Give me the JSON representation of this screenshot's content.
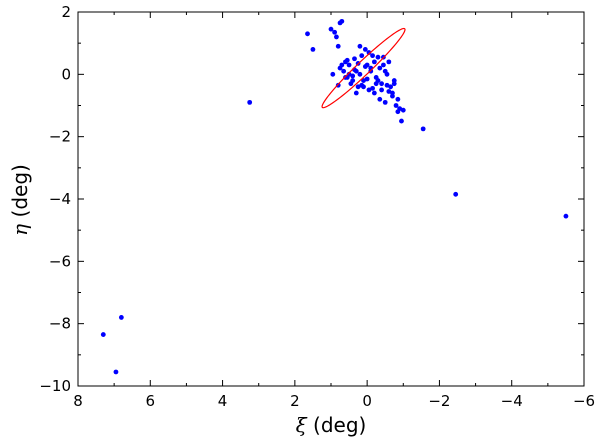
{
  "chart_data": {
    "type": "scatter",
    "xlabel_symbol": "ξ",
    "xlabel_unit": " (deg)",
    "ylabel_symbol": "η",
    "ylabel_unit": " (deg)",
    "xlim": [
      8,
      -6
    ],
    "ylim": [
      -10,
      2
    ],
    "xticks": [
      8,
      6,
      4,
      2,
      0,
      -2,
      -4,
      -6
    ],
    "yticks": [
      2,
      0,
      -2,
      -4,
      -6,
      -8,
      -10
    ],
    "xtick_labels": [
      "8",
      "6",
      "4",
      "2",
      "0",
      "−2",
      "−4",
      "−6"
    ],
    "ytick_labels": [
      "2",
      "0",
      "−2",
      "−4",
      "−6",
      "−8",
      "−10"
    ],
    "grid": false,
    "colors": {
      "points": "#0000ff",
      "ellipse": "#ff0000",
      "axes": "#000000"
    },
    "ellipse": {
      "center": [
        0.1,
        0.2
      ],
      "semi_major": 1.7,
      "semi_minor": 0.2,
      "angle_deg": 132
    },
    "points": {
      "x": [
        0.75,
        0.7,
        1.65,
        1.5,
        1.0,
        0.9,
        0.85,
        0.8,
        0.75,
        0.7,
        0.65,
        0.6,
        0.55,
        0.5,
        0.45,
        0.4,
        0.35,
        0.3,
        0.25,
        0.2,
        0.15,
        0.1,
        0.05,
        0.0,
        -0.05,
        -0.1,
        -0.15,
        -0.2,
        -0.25,
        -0.3,
        -0.35,
        -0.4,
        -0.45,
        -0.5,
        -0.55,
        -0.6,
        -0.65,
        -0.7,
        -0.75,
        -0.8,
        -0.85,
        -0.9,
        -0.95,
        0.95,
        0.8,
        0.6,
        0.5,
        0.3,
        0.2,
        0.1,
        -0.1,
        -0.2,
        -0.3,
        -0.45,
        -0.55,
        -0.7,
        -0.85,
        -1.0,
        -0.05,
        0.05,
        -0.25,
        -0.35,
        0.4,
        0.15,
        -0.6,
        -0.75,
        -0.15,
        0.25,
        0.35,
        0.55,
        -0.5,
        0.0,
        -0.4,
        3.25,
        7.3,
        6.8,
        6.95,
        -1.55,
        -2.45,
        -5.5
      ],
      "y": [
        1.65,
        1.7,
        1.3,
        0.8,
        1.45,
        1.35,
        1.2,
        0.9,
        0.2,
        0.3,
        0.1,
        0.4,
        -0.1,
        0.0,
        -0.3,
        -0.2,
        0.5,
        0.1,
        -0.4,
        0.9,
        0.6,
        -0.2,
        0.8,
        0.3,
        -0.5,
        0.2,
        0.6,
        -0.6,
        -0.1,
        0.55,
        -0.8,
        -0.3,
        0.55,
        -0.9,
        -0.35,
        0.4,
        -0.4,
        -0.7,
        -0.2,
        -1.0,
        -0.8,
        -1.1,
        -1.5,
        0.0,
        -0.35,
        -0.1,
        0.3,
        -0.6,
        0.0,
        -0.4,
        0.1,
        0.4,
        -0.2,
        0.3,
        0.0,
        -0.6,
        -1.2,
        -1.15,
        0.7,
        0.25,
        -0.3,
        0.2,
        -0.05,
        -0.35,
        -0.55,
        -0.3,
        -0.45,
        0.35,
        0.15,
        0.45,
        0.1,
        -0.15,
        -0.5,
        -0.9,
        -8.35,
        -7.8,
        -9.55,
        -1.75,
        -3.85,
        -4.55
      ]
    }
  }
}
